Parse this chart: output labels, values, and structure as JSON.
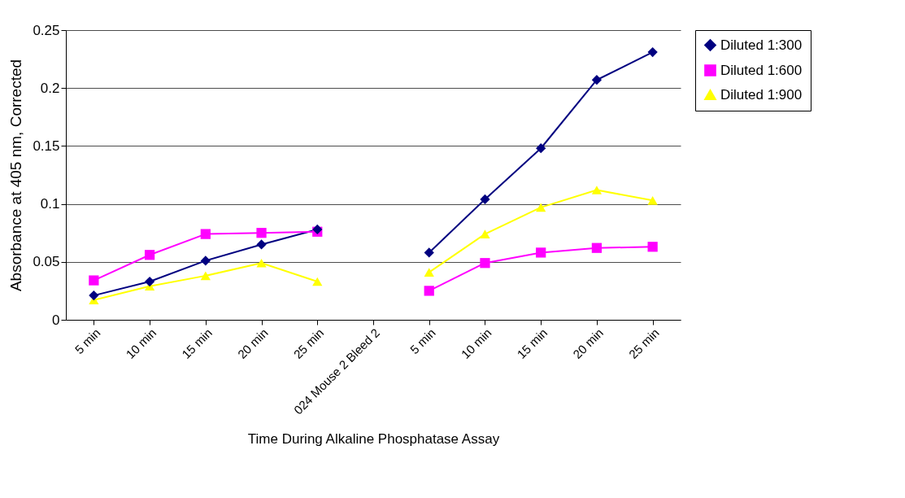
{
  "chart_data": {
    "type": "line",
    "xlabel": "Time During Alkaline Phosphatase Assay",
    "ylabel": "Absorbance at 405 nm, Corrected",
    "categories": [
      "5 min",
      "10 min",
      "15 min",
      "20 min",
      "25 min",
      "024 Mouse 2 Bleed 2",
      "5 min",
      "10 min",
      "15 min",
      "20 min",
      "25 min"
    ],
    "series": [
      {
        "name": "Diluted 1:300",
        "color": "#000080",
        "marker": "diamond",
        "values": [
          0.021,
          0.033,
          0.051,
          0.065,
          0.078,
          null,
          0.058,
          0.104,
          0.148,
          0.207,
          0.231
        ]
      },
      {
        "name": "Diluted 1:600",
        "color": "#ff00ff",
        "marker": "square",
        "values": [
          0.034,
          0.056,
          0.074,
          0.075,
          0.076,
          null,
          0.025,
          0.049,
          0.058,
          0.062,
          0.063
        ]
      },
      {
        "name": "Diluted 1:900",
        "color": "#ffff00",
        "marker": "triangle",
        "values": [
          0.017,
          0.029,
          0.038,
          0.049,
          0.033,
          null,
          0.041,
          0.074,
          0.097,
          0.112,
          0.103
        ]
      }
    ],
    "ylim": [
      0,
      0.25
    ],
    "yticks": [
      0,
      0.05,
      0.1,
      0.15,
      0.2,
      0.25
    ],
    "grid": "y",
    "legend": "right",
    "line_style": "solid"
  }
}
